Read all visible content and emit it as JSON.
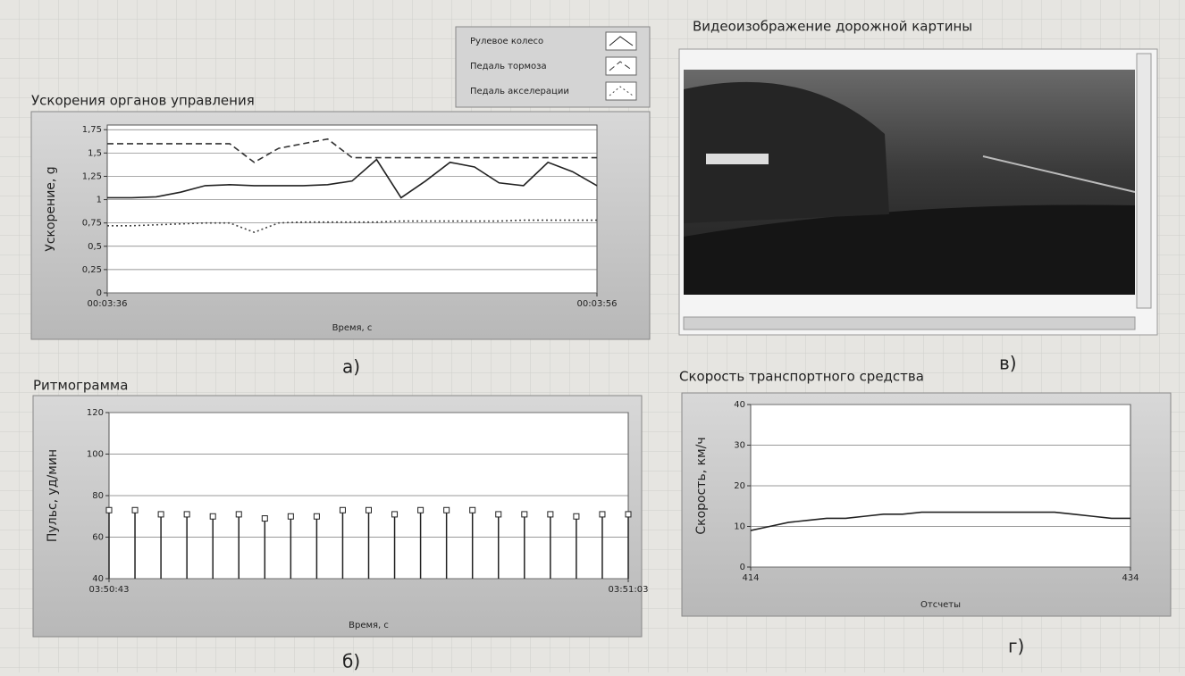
{
  "chart_data": [
    {
      "type": "line",
      "title": "Ускорения органов управления",
      "ylabel": "Ускорение, g",
      "xlabel": "Время, с",
      "x": [
        216,
        217,
        218,
        219,
        220,
        221,
        222,
        223,
        224,
        225,
        226,
        227,
        228,
        229,
        230,
        231,
        232,
        233,
        234,
        235,
        236
      ],
      "xlim": [
        216,
        236
      ],
      "xticks": [
        {
          "value": 216,
          "label": "00:03:36"
        },
        {
          "value": 236,
          "label": "00:03:56"
        }
      ],
      "ylim": [
        0,
        1.8
      ],
      "yticks": [
        0,
        {
          "value": 0.25,
          "label": "0,25"
        },
        {
          "value": 0.5,
          "label": "0,5"
        },
        {
          "value": 0.75,
          "label": "0,75"
        },
        1,
        {
          "value": 1.25,
          "label": "1,25"
        },
        {
          "value": 1.5,
          "label": "1,5"
        },
        {
          "value": 1.75,
          "label": "1,75"
        }
      ],
      "grid": true,
      "legend": "top-right",
      "series": [
        {
          "name": "Рулевое колесо",
          "color": "#222222",
          "dash": "none",
          "values": [
            1.02,
            1.02,
            1.03,
            1.08,
            1.15,
            1.16,
            1.15,
            1.15,
            1.15,
            1.16,
            1.2,
            1.43,
            1.02,
            1.2,
            1.4,
            1.35,
            1.18,
            1.15,
            1.4,
            1.3,
            1.15
          ]
        },
        {
          "name": "Педаль тормоза",
          "color": "#333333",
          "dash": "7,4",
          "values": [
            1.6,
            1.6,
            1.6,
            1.6,
            1.6,
            1.6,
            1.4,
            1.55,
            1.6,
            1.65,
            1.45,
            1.45,
            1.45,
            1.45,
            1.45,
            1.45,
            1.45,
            1.45,
            1.45,
            1.45,
            1.45
          ]
        },
        {
          "name": "Педаль акселерации",
          "color": "#444444",
          "dash": "2,3",
          "values": [
            0.72,
            0.72,
            0.73,
            0.74,
            0.75,
            0.75,
            0.65,
            0.75,
            0.76,
            0.76,
            0.76,
            0.76,
            0.77,
            0.77,
            0.77,
            0.77,
            0.77,
            0.78,
            0.78,
            0.78,
            0.78
          ]
        }
      ]
    },
    {
      "type": "stem",
      "title": "Ритмограмма",
      "ylabel": "Пульс, уд/мин",
      "xlabel": "Время, с",
      "x": [
        13843,
        13844,
        13845,
        13846,
        13847,
        13848,
        13849,
        13850,
        13851,
        13852,
        13853,
        13854,
        13855,
        13856,
        13857,
        13858,
        13859,
        13860,
        13861,
        13862,
        13863
      ],
      "xlim": [
        13843,
        13863
      ],
      "xticks": [
        {
          "value": 13843,
          "label": "03:50:43"
        },
        {
          "value": 13863,
          "label": "03:51:03"
        }
      ],
      "ylim": [
        40,
        120
      ],
      "yticks": [
        40,
        60,
        80,
        100,
        120
      ],
      "grid": true,
      "color": "#222222",
      "values": [
        73,
        73,
        71,
        71,
        70,
        71,
        69,
        70,
        70,
        73,
        73,
        71,
        73,
        73,
        73,
        71,
        71,
        71,
        70,
        71,
        71
      ]
    },
    {
      "type": "line",
      "title": "Скорость транспортного средства",
      "ylabel": "Скорость, км/ч",
      "xlabel": "Отсчеты",
      "x": [
        414,
        415,
        416,
        417,
        418,
        419,
        420,
        421,
        422,
        423,
        424,
        425,
        426,
        427,
        428,
        429,
        430,
        431,
        432,
        433,
        434
      ],
      "xlim": [
        414,
        434
      ],
      "xticks": [
        414,
        434
      ],
      "ylim": [
        0,
        40
      ],
      "yticks": [
        0,
        10,
        20,
        30,
        40
      ],
      "grid": true,
      "series": [
        {
          "color": "#222222",
          "dash": "none",
          "values": [
            9,
            10,
            11,
            11.5,
            12,
            12,
            12.5,
            13,
            13,
            13.5,
            13.5,
            13.5,
            13.5,
            13.5,
            13.5,
            13.5,
            13.5,
            13,
            12.5,
            12,
            12
          ]
        }
      ]
    }
  ],
  "video": {
    "title": "Видеоизображение дорожной картины"
  },
  "captions": [
    "а)",
    "б)",
    "в)",
    "г)"
  ]
}
